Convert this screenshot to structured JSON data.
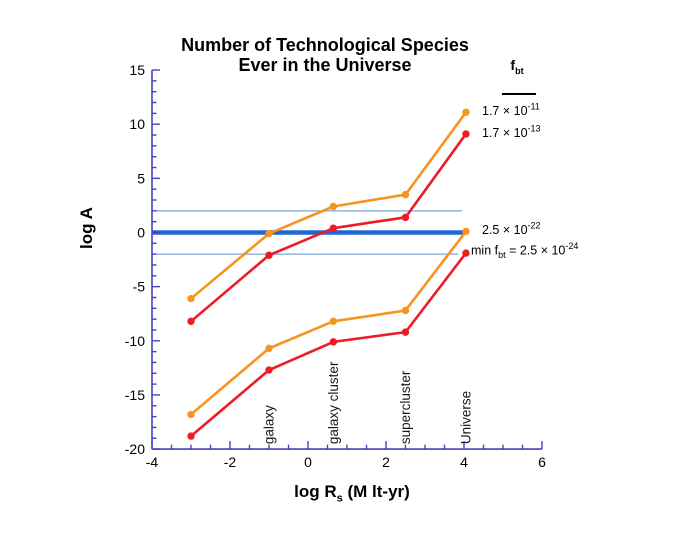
{
  "title": {
    "line1": "Number of Technological Species",
    "line2": "Ever in the Universe"
  },
  "axes": {
    "y_label": "log A",
    "x_label_pre": "log R",
    "x_label_sub": "s",
    "x_label_post": " (M lt-yr)"
  },
  "legend": {
    "header_main": "f",
    "header_sub": "bt",
    "entries": [
      {
        "prefix": "",
        "sub": "",
        "value": "1.7 × 10",
        "exponent": "-11"
      },
      {
        "prefix": "",
        "sub": "",
        "value": "1.7 × 10",
        "exponent": "-13"
      },
      {
        "prefix": "",
        "sub": "",
        "value": "2.5 × 10",
        "exponent": "-22"
      },
      {
        "prefix": "min f",
        "sub": "bt",
        "value": " = 2.5 × 10",
        "exponent": "-24"
      }
    ]
  },
  "chart_data": {
    "type": "line",
    "title": "Number of Technological Species Ever in the Universe",
    "xlabel": "log Rs (M lt-yr)",
    "ylabel": "log A",
    "xlim": [
      -4,
      6
    ],
    "ylim": [
      -20,
      15
    ],
    "x_major_ticks": [
      -4,
      -2,
      0,
      2,
      4,
      6
    ],
    "x_minor_step": 0.5,
    "y_major_ticks": [
      15,
      10,
      5,
      0,
      -5,
      -10,
      -15,
      -20
    ],
    "y_minor_step": 1,
    "grid": false,
    "axis_color": "#4343C8",
    "x": [
      -3,
      -1,
      0.65,
      2.5,
      4.05
    ],
    "series": [
      {
        "name": "f_bt = 1.7e-11",
        "color": "#F7941E",
        "values": [
          -6.1,
          -0.1,
          2.4,
          3.5,
          11.1
        ]
      },
      {
        "name": "f_bt = 1.7e-13",
        "color": "#EC1C24",
        "values": [
          -8.2,
          -2.1,
          0.4,
          1.4,
          9.1
        ]
      },
      {
        "name": "f_bt = 2.5e-22",
        "color": "#F7941E",
        "values": [
          -16.8,
          -10.7,
          -8.2,
          -7.2,
          0.1
        ]
      },
      {
        "name": "min f_bt = 2.5e-24",
        "color": "#EC1C24",
        "values": [
          -18.8,
          -12.7,
          -10.1,
          -9.2,
          -1.9
        ]
      }
    ],
    "reference_lines": [
      {
        "y": 2,
        "x_start": -4,
        "x_end": 3.95,
        "width": 1.3,
        "color": "#79A7DC"
      },
      {
        "y": 0,
        "x_start": -4,
        "x_end": 4.05,
        "width": 4.4,
        "color": "#2266D2"
      },
      {
        "y": -2,
        "x_start": -4,
        "x_end": 3.85,
        "width": 1.3,
        "color": "#79A7DC"
      }
    ],
    "scale_annotations": [
      {
        "label": "galaxy",
        "x": -1
      },
      {
        "label": "galaxy cluster",
        "x": 0.65
      },
      {
        "label": "supercluster",
        "x": 2.5
      },
      {
        "label": "Universe",
        "x": 4.05
      }
    ],
    "legend_position": "right"
  }
}
